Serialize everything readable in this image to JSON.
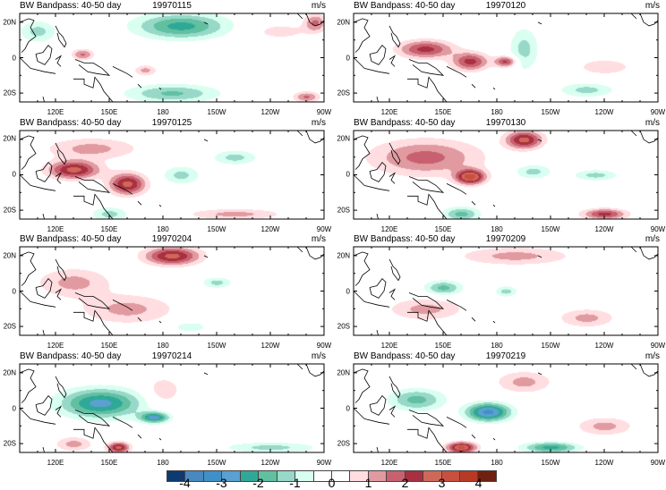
{
  "figure": {
    "panel_title": "BW Bandpass: 40-50 day",
    "units": "m/s",
    "lon_ticks": [
      "120E",
      "150E",
      "180",
      "150W",
      "120W",
      "90W"
    ],
    "lat_ticks": [
      "20N",
      "0",
      "20S"
    ],
    "lon_range_deg_east": [
      100,
      270
    ],
    "lat_range": [
      -25,
      25
    ]
  },
  "panels": [
    {
      "date": "19970115",
      "anomalies": [
        [
          190,
          18,
          -2.2,
          25,
          7
        ],
        [
          110,
          15,
          -1.2,
          10,
          6
        ],
        [
          185,
          -20,
          -1.6,
          25,
          5
        ],
        [
          135,
          2,
          1.6,
          6,
          3
        ],
        [
          170,
          -7,
          1.2,
          6,
          3
        ],
        [
          265,
          20,
          1.6,
          6,
          5
        ],
        [
          260,
          -22,
          1.6,
          7,
          3
        ],
        [
          245,
          15,
          0.7,
          18,
          5
        ]
      ]
    },
    {
      "date": "19970120",
      "anomalies": [
        [
          140,
          5,
          2.2,
          15,
          5
        ],
        [
          165,
          -2,
          2.2,
          10,
          5
        ],
        [
          185,
          -2,
          2.2,
          6,
          3
        ],
        [
          195,
          5,
          -1.2,
          8,
          12
        ],
        [
          240,
          -5,
          0.7,
          20,
          6
        ],
        [
          230,
          -18,
          -1.2,
          15,
          4
        ]
      ]
    },
    {
      "date": "19970125",
      "anomalies": [
        [
          130,
          3,
          2.7,
          14,
          5
        ],
        [
          160,
          -5,
          2.7,
          10,
          6
        ],
        [
          140,
          15,
          1.2,
          25,
          6
        ],
        [
          190,
          0,
          -1.2,
          10,
          5
        ],
        [
          150,
          -22,
          -1.2,
          10,
          4
        ],
        [
          220,
          -22,
          1.2,
          25,
          3
        ],
        [
          220,
          10,
          -1.2,
          12,
          4
        ]
      ]
    },
    {
      "date": "19970130",
      "anomalies": [
        [
          195,
          20,
          2.7,
          10,
          5
        ],
        [
          165,
          -1,
          3.2,
          8,
          4
        ],
        [
          140,
          10,
          1.7,
          30,
          10
        ],
        [
          200,
          2,
          -1.2,
          10,
          4
        ],
        [
          235,
          0,
          -1.2,
          12,
          3
        ],
        [
          160,
          -22,
          -1.7,
          10,
          4
        ],
        [
          240,
          -22,
          2.2,
          12,
          3
        ]
      ]
    },
    {
      "date": "19970204",
      "anomalies": [
        [
          185,
          20,
          2.7,
          15,
          5
        ],
        [
          160,
          -10,
          1.2,
          25,
          8
        ],
        [
          130,
          5,
          1.2,
          20,
          8
        ],
        [
          210,
          5,
          -1.2,
          8,
          3
        ],
        [
          195,
          -20,
          -0.9,
          10,
          3
        ]
      ]
    },
    {
      "date": "19970209",
      "anomalies": [
        [
          150,
          2,
          -1.7,
          10,
          4
        ],
        [
          185,
          0,
          -1.2,
          6,
          3
        ],
        [
          190,
          20,
          1.2,
          30,
          5
        ],
        [
          140,
          -10,
          1.2,
          20,
          6
        ],
        [
          230,
          -15,
          1.2,
          15,
          5
        ]
      ]
    },
    {
      "date": "19970214",
      "anomalies": [
        [
          145,
          3,
          -2.7,
          22,
          8
        ],
        [
          175,
          -5,
          -2.7,
          8,
          3
        ],
        [
          155,
          -22,
          2.7,
          6,
          3
        ],
        [
          130,
          -20,
          1.2,
          10,
          4
        ],
        [
          180,
          10,
          0.9,
          10,
          8
        ],
        [
          240,
          -22,
          -1.2,
          25,
          3
        ]
      ]
    },
    {
      "date": "19970219",
      "anomalies": [
        [
          175,
          -2,
          -3.2,
          12,
          5
        ],
        [
          135,
          5,
          -1.7,
          15,
          6
        ],
        [
          210,
          -22,
          -2.2,
          15,
          3
        ],
        [
          160,
          -22,
          3.2,
          8,
          3
        ],
        [
          195,
          15,
          1.2,
          15,
          6
        ],
        [
          240,
          -10,
          1.2,
          15,
          5
        ]
      ]
    }
  ],
  "colorbar": {
    "levels": [
      -4,
      -3.5,
      -3,
      -2.5,
      -2,
      -1.5,
      -1,
      -0.5,
      0,
      0.5,
      1,
      1.5,
      2,
      2.5,
      3,
      3.5,
      4
    ],
    "labels": [
      "-4",
      "-3",
      "-2",
      "-1",
      "0",
      "1",
      "2",
      "3",
      "4"
    ],
    "colors": [
      "#0d3a70",
      "#4a88c0",
      "#4090c8",
      "#5aa0d0",
      "#30a898",
      "#60c0a0",
      "#98d8c8",
      "#d8fff0",
      "#ffffff",
      "#ffffff",
      "#ffdde0",
      "#e09aa0",
      "#c86070",
      "#a83040",
      "#d06858",
      "#c85040",
      "#b83a25",
      "#702010"
    ]
  }
}
